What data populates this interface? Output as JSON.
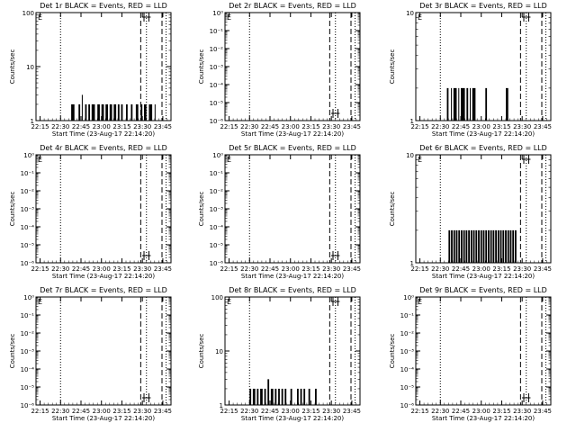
{
  "figure": {
    "background": "#ffffff",
    "ink": "#000000"
  },
  "chart_data": [
    {
      "type": "line",
      "title": "Det 1r BLACK = Events, RED = LLD",
      "xlabel": "Start Time (23-Aug-17 22:14:20)",
      "ylabel": "Counts/sec",
      "scale": "log",
      "ytick_labels": [
        "1",
        "10",
        "100"
      ],
      "xtick_labels": [
        "22:15",
        "22:30",
        "22:45",
        "23:00",
        "23:15",
        "23:30",
        "23:45"
      ],
      "marker_text": "E",
      "series": [
        {
          "color": "#000000",
          "bars": [
            [
              22.63,
              22.67,
              2
            ],
            [
              22.72,
              22.74,
              2
            ],
            [
              22.76,
              22.77,
              3
            ],
            [
              22.8,
              22.82,
              2
            ],
            [
              22.84,
              22.86,
              2
            ],
            [
              22.88,
              22.92,
              2
            ],
            [
              22.95,
              22.98,
              2
            ],
            [
              23.0,
              23.03,
              2
            ],
            [
              23.05,
              23.08,
              2
            ],
            [
              23.1,
              23.13,
              2
            ],
            [
              23.15,
              23.18,
              2
            ],
            [
              23.2,
              23.22,
              2
            ],
            [
              23.24,
              23.26,
              2
            ],
            [
              23.3,
              23.32,
              2
            ],
            [
              23.36,
              23.38,
              2
            ],
            [
              23.42,
              23.45,
              2
            ],
            [
              23.48,
              23.5,
              2
            ],
            [
              23.52,
              23.55,
              2
            ],
            [
              23.58,
              23.62,
              2
            ],
            [
              23.65,
              23.66,
              2
            ]
          ]
        }
      ]
    },
    {
      "type": "line",
      "title": "Det 2r BLACK = Events, RED = LLD",
      "xlabel": "Start Time (23-Aug-17 22:14:20)",
      "ylabel": "Counts/sec",
      "scale": "log",
      "ytick_labels": [
        "10⁻⁶",
        "10⁻⁵",
        "10⁻⁴",
        "10⁻³",
        "10⁻²",
        "10⁻¹",
        "10⁰"
      ],
      "xtick_labels": [
        "22:15",
        "22:30",
        "22:45",
        "23:00",
        "23:15",
        "23:30",
        "23:45"
      ],
      "marker_text": "E",
      "series": []
    },
    {
      "type": "line",
      "title": "Det 3r BLACK = Events, RED = LLD",
      "xlabel": "Start Time (23-Aug-17 22:14:20)",
      "ylabel": "Counts/sec",
      "scale": "log",
      "ytick_labels": [
        "1",
        "10"
      ],
      "xtick_labels": [
        "22:15",
        "22:30",
        "22:45",
        "23:00",
        "23:15",
        "23:30",
        "23:45"
      ],
      "marker_text": "E",
      "series": [
        {
          "color": "#000000",
          "bars": [
            [
              22.58,
              22.6,
              2
            ],
            [
              22.63,
              22.64,
              2
            ],
            [
              22.66,
              22.7,
              2
            ],
            [
              22.72,
              22.73,
              2
            ],
            [
              22.75,
              22.8,
              2
            ],
            [
              22.82,
              22.84,
              2
            ],
            [
              22.86,
              22.87,
              2
            ],
            [
              22.89,
              22.93,
              2
            ],
            [
              23.05,
              23.07,
              2
            ],
            [
              23.3,
              23.33,
              2
            ]
          ]
        }
      ]
    },
    {
      "type": "line",
      "title": "Det 4r BLACK = Events, RED = LLD",
      "xlabel": "Start Time (23-Aug-17 22:14:20)",
      "ylabel": "Counts/sec",
      "scale": "log",
      "ytick_labels": [
        "10⁻⁶",
        "10⁻⁵",
        "10⁻⁴",
        "10⁻³",
        "10⁻²",
        "10⁻¹",
        "10⁰"
      ],
      "xtick_labels": [
        "22:15",
        "22:30",
        "22:45",
        "23:00",
        "23:15",
        "23:30",
        "23:45"
      ],
      "marker_text": "E",
      "series": []
    },
    {
      "type": "line",
      "title": "Det 5r BLACK = Events, RED = LLD",
      "xlabel": "Start Time (23-Aug-17 22:14:20)",
      "ylabel": "Counts/sec",
      "scale": "log",
      "ytick_labels": [
        "10⁻⁶",
        "10⁻⁵",
        "10⁻⁴",
        "10⁻³",
        "10⁻²",
        "10⁻¹",
        "10⁰"
      ],
      "xtick_labels": [
        "22:15",
        "22:30",
        "22:45",
        "23:00",
        "23:15",
        "23:30",
        "23:45"
      ],
      "marker_text": "E",
      "series": []
    },
    {
      "type": "line",
      "title": "Det 6r BLACK = Events, RED = LLD",
      "xlabel": "Start Time (23-Aug-17 22:14:20)",
      "ylabel": "Counts/sec",
      "scale": "log",
      "ytick_labels": [
        "1",
        "10"
      ],
      "xtick_labels": [
        "22:15",
        "22:30",
        "22:45",
        "23:00",
        "23:15",
        "23:30",
        "23:45"
      ],
      "marker_text": "E",
      "series": [
        {
          "color": "#000000",
          "bars": [
            [
              22.6,
              22.62,
              2
            ],
            [
              22.63,
              22.65,
              2
            ],
            [
              22.66,
              22.68,
              2
            ],
            [
              22.69,
              22.71,
              2
            ],
            [
              22.72,
              22.74,
              2
            ],
            [
              22.75,
              22.77,
              2
            ],
            [
              22.78,
              22.8,
              2
            ],
            [
              22.81,
              22.83,
              2
            ],
            [
              22.84,
              22.86,
              2
            ],
            [
              22.87,
              22.89,
              2
            ],
            [
              22.9,
              22.92,
              2
            ],
            [
              22.93,
              22.95,
              2
            ],
            [
              22.96,
              22.98,
              2
            ],
            [
              22.99,
              23.01,
              2
            ],
            [
              23.02,
              23.04,
              2
            ],
            [
              23.05,
              23.07,
              2
            ],
            [
              23.08,
              23.1,
              2
            ],
            [
              23.11,
              23.13,
              2
            ],
            [
              23.14,
              23.16,
              2
            ],
            [
              23.17,
              23.19,
              2
            ],
            [
              23.2,
              23.22,
              2
            ],
            [
              23.23,
              23.25,
              2
            ],
            [
              23.26,
              23.28,
              2
            ],
            [
              23.29,
              23.31,
              2
            ],
            [
              23.32,
              23.34,
              2
            ],
            [
              23.35,
              23.37,
              2
            ],
            [
              23.38,
              23.4,
              2
            ],
            [
              23.41,
              23.43,
              2
            ]
          ]
        }
      ]
    },
    {
      "type": "line",
      "title": "Det 7r BLACK = Events, RED = LLD",
      "xlabel": "Start Time (23-Aug-17 22:14:20)",
      "ylabel": "Counts/sec",
      "scale": "log",
      "ytick_labels": [
        "10⁻⁶",
        "10⁻⁵",
        "10⁻⁴",
        "10⁻³",
        "10⁻²",
        "10⁻¹",
        "10⁰"
      ],
      "xtick_labels": [
        "22:15",
        "22:30",
        "22:45",
        "23:00",
        "23:15",
        "23:30",
        "23:45"
      ],
      "marker_text": "E",
      "series": []
    },
    {
      "type": "line",
      "title": "Det 8r BLACK = Events, RED = LLD",
      "xlabel": "Start Time (23-Aug-17 22:14:20)",
      "ylabel": "Counts/sec",
      "scale": "log",
      "ytick_labels": [
        "1",
        "10",
        "100"
      ],
      "xtick_labels": [
        "22:15",
        "22:30",
        "22:45",
        "23:00",
        "23:15",
        "23:30",
        "23:45"
      ],
      "marker_text": "E",
      "series": [
        {
          "color": "#000000",
          "bars": [
            [
              22.5,
              22.52,
              2
            ],
            [
              22.54,
              22.57,
              2
            ],
            [
              22.59,
              22.61,
              2
            ],
            [
              22.63,
              22.66,
              2
            ],
            [
              22.68,
              22.7,
              2
            ],
            [
              22.72,
              22.74,
              3
            ],
            [
              22.76,
              22.79,
              2
            ],
            [
              22.81,
              22.83,
              2
            ],
            [
              22.85,
              22.87,
              2
            ],
            [
              22.89,
              22.91,
              2
            ],
            [
              22.93,
              22.95,
              2
            ],
            [
              23.0,
              23.02,
              2
            ],
            [
              23.08,
              23.1,
              2
            ],
            [
              23.12,
              23.14,
              2
            ],
            [
              23.16,
              23.18,
              2
            ],
            [
              23.22,
              23.24,
              2
            ],
            [
              23.3,
              23.32,
              2
            ]
          ]
        }
      ]
    },
    {
      "type": "line",
      "title": "Det 9r BLACK = Events, RED = LLD",
      "xlabel": "Start Time (23-Aug-17 22:14:20)",
      "ylabel": "Counts/sec",
      "scale": "log",
      "ytick_labels": [
        "10⁻⁶",
        "10⁻⁵",
        "10⁻⁴",
        "10⁻³",
        "10⁻²",
        "10⁻¹",
        "10⁰"
      ],
      "xtick_labels": [
        "22:15",
        "22:30",
        "22:45",
        "23:00",
        "23:15",
        "23:30",
        "23:45"
      ],
      "marker_text": "E",
      "series": []
    }
  ]
}
